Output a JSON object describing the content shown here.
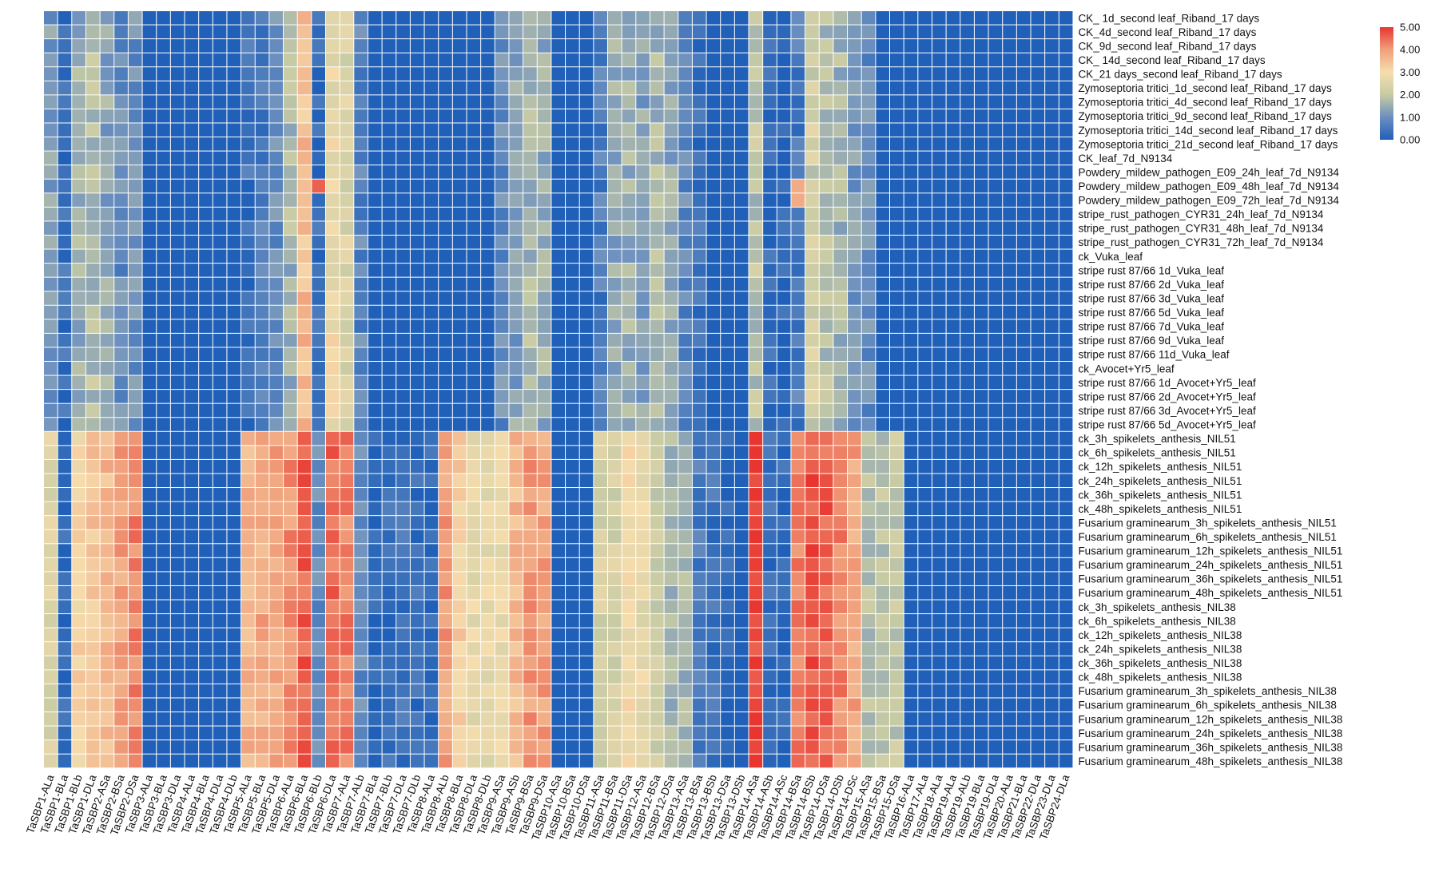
{
  "chart_data": {
    "type": "heatmap",
    "colorscale": {
      "min": 0,
      "max": 5,
      "stops": [
        "#2060b8",
        "#6b8fbf",
        "#c7cba4",
        "#f6ddad",
        "#f0a07c",
        "#e8352f"
      ],
      "ticks": [
        "5.00",
        "4.00",
        "3.00",
        "2.00",
        "1.00",
        "0.00"
      ]
    },
    "rows": [
      "CK_ 1d_second leaf_Riband_17 days",
      "CK_4d_second leaf_Riband_17 days",
      "CK_9d_second leaf_Riband_17 days",
      "CK_ 14d_second leaf_Riband_17 days",
      "CK_21 days_second leaf_Riband_17 days",
      "Zymoseptoria tritici_1d_second leaf_Riband_17 days",
      "Zymoseptoria tritici_4d_second leaf_Riband_17 days",
      "Zymoseptoria tritici_9d_second leaf_Riband_17 days",
      "Zymoseptoria tritici_14d_second leaf_Riband_17 days",
      "Zymoseptoria tritici_21d_second leaf_Riband_17 days",
      "CK_leaf_7d_N9134",
      "Powdery_mildew_pathogen_E09_24h_leaf_7d_N9134",
      "Powdery_mildew_pathogen_E09_48h_leaf_7d_N9134",
      "Powdery_mildew_pathogen_E09_72h_leaf_7d_N9134",
      "stripe_rust_pathogen_CYR31_24h_leaf_7d_N9134",
      "stripe_rust_pathogen_CYR31_48h_leaf_7d_N9134",
      "stripe_rust_pathogen_CYR31_72h_leaf_7d_N9134",
      "ck_Vuka_leaf",
      "stripe rust 87/66 1d_Vuka_leaf",
      "stripe rust 87/66 2d_Vuka_leaf",
      "stripe rust 87/66 3d_Vuka_leaf",
      "stripe rust 87/66 5d_Vuka_leaf",
      "stripe rust 87/66 7d_Vuka_leaf",
      "stripe rust 87/66 9d_Vuka_leaf",
      "stripe rust 87/66 11d_Vuka_leaf",
      "ck_Avocet+Yr5_leaf",
      "stripe rust 87/66 1d_Avocet+Yr5_leaf",
      "stripe rust 87/66 2d_Avocet+Yr5_leaf",
      "stripe rust 87/66 3d_Avocet+Yr5_leaf",
      "stripe rust 87/66 5d_Avocet+Yr5_leaf",
      "ck_3h_spikelets_anthesis_NIL51",
      "ck_6h_spikelets_anthesis_NIL51",
      "ck_12h_spikelets_anthesis_NIL51",
      "ck_24h_spikelets_anthesis_NIL51",
      "ck_36h_spikelets_anthesis_NIL51",
      "ck_48h_spikelets_anthesis_NIL51",
      "Fusarium graminearum_3h_spikelets_anthesis_NIL51",
      "Fusarium graminearum_6h_spikelets_anthesis_NIL51",
      "Fusarium graminearum_12h_spikelets_anthesis_NIL51",
      "Fusarium graminearum_24h_spikelets_anthesis_NIL51",
      "Fusarium graminearum_36h_spikelets_anthesis_NIL51",
      "Fusarium graminearum_48h_spikelets_anthesis_NIL51",
      "ck_3h_spikelets_anthesis_NIL38",
      "ck_6h_spikelets_anthesis_NIL38",
      "ck_12h_spikelets_anthesis_NIL38",
      "ck_24h_spikelets_anthesis_NIL38",
      "ck_36h_spikelets_anthesis_NIL38",
      "ck_48h_spikelets_anthesis_NIL38",
      "Fusarium graminearum_3h_spikelets_anthesis_NIL38",
      "Fusarium graminearum_6h_spikelets_anthesis_NIL38",
      "Fusarium graminearum_12h_spikelets_anthesis_NIL38",
      "Fusarium graminearum_24h_spikelets_anthesis_NIL38",
      "Fusarium graminearum_36h_spikelets_anthesis_NIL38",
      "Fusarium graminearum_48h_spikelets_anthesis_NIL38"
    ],
    "columns": [
      "TaSBP1-ALa",
      "TaSBP1-BLa",
      "TaSBP1-BLb",
      "TaSBP1-DLa",
      "TaSBP2-ASa",
      "TaSBP2-BSa",
      "TaSBP2-DSa",
      "TaSBP3-ALa",
      "TaSBP3-BLa",
      "TaSBP3-DLa",
      "TaSBP4-ALa",
      "TaSBP4-BLa",
      "TaSBP4-DLa",
      "TaSBP4-DLb",
      "TaSBP5-ALa",
      "TaSBP5-BLa",
      "TaSBP5-DLa",
      "TaSBP6-ALa",
      "TaSBP6-BLa",
      "TaSBP6-BLb",
      "TaSBP6-DLa",
      "TaSBP7-ALa",
      "TaSBP7-ALb",
      "TaSBP7-BLa",
      "TaSBP7-BLb",
      "TaSBP7-DLa",
      "TaSBP7-DLb",
      "TaSBP8-ALa",
      "TaSBP8-ALb",
      "TaSBP8-BLa",
      "TaSBP8-DLa",
      "TaSBP8-DLb",
      "TaSBP9-ASa",
      "TaSBP9-ASb",
      "TaSBP9-BSa",
      "TaSBP9-DSa",
      "TaSBP10-ASa",
      "TaSBP10-BSa",
      "TaSBP10-DSa",
      "TaSBP11-ASa",
      "TaSBP11-BSa",
      "TaSBP11-DSa",
      "TaSBP12-ASa",
      "TaSBP12-BSa",
      "TaSBP12-DSa",
      "TaSBP13-ASa",
      "TaSBP13-BSa",
      "TaSBP13-BSb",
      "TaSBP13-DSa",
      "TaSBP13-DSb",
      "TaSBP14-ASa",
      "TaSBP14-ASb",
      "TaSBP14-ASc",
      "TaSBP14-BSa",
      "TaSBP14-BSb",
      "TaSBP14-DSa",
      "TaSBP14-DSb",
      "TaSBP14-DSc",
      "TaSBP15-ASa",
      "TaSBP15-BSa",
      "TaSBP15-DSa",
      "TaSBP16-ALa",
      "TaSBP17-ALa",
      "TaSBP18-ALa",
      "TaSBP19-ALa",
      "TaSBP19-ALb",
      "TaSBP19-BLa",
      "TaSBP19-DLa",
      "TaSBP20-ALa",
      "TaSBP21-BLa",
      "TaSBP22-DLa",
      "TaSBP23-DLa",
      "TaSBP24-DLa"
    ],
    "value_profiles": {
      "leaf": [
        1.2,
        0.3,
        1.5,
        1.8,
        1.4,
        0.9,
        1.0,
        0,
        0,
        0,
        0,
        0,
        0,
        0,
        0.4,
        0.6,
        0.9,
        1.6,
        3.5,
        0.2,
        2.8,
        2.4,
        0.8,
        0,
        0,
        0,
        0,
        0,
        0,
        0,
        0,
        0,
        0.9,
        1.3,
        1.6,
        1.5,
        0,
        0,
        0,
        0.6,
        1.4,
        1.5,
        1.3,
        1.6,
        1.4,
        0.8,
        0.3,
        0,
        0,
        0,
        1.9,
        0.2,
        0.1,
        0.6,
        2.2,
        1.8,
        1.6,
        1.2,
        0.9,
        0,
        0,
        0,
        0,
        0,
        0,
        0,
        0,
        0,
        0,
        0,
        0,
        0,
        0
      ],
      "spike": [
        2.4,
        0.2,
        3.1,
        3.4,
        3.6,
        3.9,
        4.2,
        0,
        0,
        0,
        0,
        0,
        0,
        0,
        3.7,
        3.8,
        3.9,
        4.1,
        4.6,
        0.9,
        4.5,
        4.3,
        0.9,
        0.2,
        0.3,
        0.4,
        0.3,
        0.2,
        4.0,
        3.2,
        2.7,
        2.7,
        2.8,
        3.6,
        4.0,
        3.9,
        0,
        0,
        0,
        2.3,
        2.3,
        2.9,
        2.7,
        2.1,
        1.6,
        1.6,
        0.6,
        0.4,
        0.2,
        0,
        4.9,
        0.3,
        0.2,
        4.3,
        4.7,
        4.6,
        4.2,
        3.9,
        1.8,
        1.9,
        2.0,
        0,
        0,
        0,
        0,
        0,
        0,
        0,
        0,
        0,
        0,
        0,
        0
      ]
    }
  }
}
